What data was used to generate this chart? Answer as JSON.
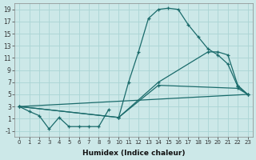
{
  "title": "",
  "xlabel": "Humidex (Indice chaleur)",
  "ylabel": "",
  "bg_color": "#cce8e8",
  "line_color": "#1a6b6b",
  "grid_color": "#aad4d4",
  "xlim": [
    -0.5,
    23.5
  ],
  "ylim": [
    -2,
    20
  ],
  "xticks": [
    0,
    1,
    2,
    3,
    4,
    5,
    6,
    7,
    8,
    9,
    10,
    11,
    12,
    13,
    14,
    15,
    16,
    17,
    18,
    19,
    20,
    21,
    22,
    23
  ],
  "yticks": [
    -1,
    1,
    3,
    5,
    7,
    9,
    11,
    13,
    15,
    17,
    19
  ],
  "series": [
    {
      "x": [
        10,
        11,
        12,
        13,
        14,
        15,
        16,
        17,
        18,
        19,
        20,
        21,
        22,
        23
      ],
      "y": [
        1.2,
        7.0,
        12.0,
        17.5,
        19.0,
        19.2,
        19.0,
        16.5,
        14.5,
        12.5,
        11.5,
        10.0,
        6.3,
        5.0
      ],
      "marker": true
    },
    {
      "x": [
        0,
        10,
        14,
        19,
        20,
        21,
        22,
        23
      ],
      "y": [
        3.0,
        1.2,
        7.0,
        12.0,
        12.0,
        11.5,
        6.5,
        5.0
      ],
      "marker": true
    },
    {
      "x": [
        0,
        10,
        14,
        22,
        23
      ],
      "y": [
        3.0,
        1.2,
        6.5,
        6.0,
        5.0
      ],
      "marker": true
    },
    {
      "x": [
        0,
        23
      ],
      "y": [
        3.0,
        5.0
      ],
      "marker": false
    },
    {
      "x": [
        0,
        1,
        2,
        3,
        4,
        5,
        6,
        7,
        8,
        9
      ],
      "y": [
        3.0,
        2.2,
        1.5,
        -0.7,
        1.2,
        -0.3,
        -0.3,
        -0.3,
        -0.3,
        2.5
      ],
      "marker": true
    }
  ]
}
